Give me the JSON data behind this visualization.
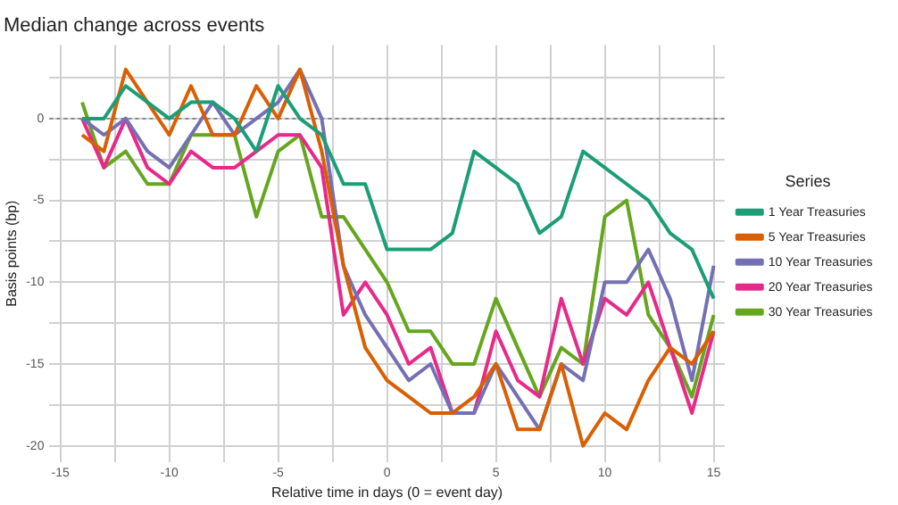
{
  "chart_data": {
    "type": "line",
    "title": "Median change across events",
    "xlabel": "Relative time in days (0 = event day)",
    "ylabel": "Basis points (bp)",
    "legend_title": "Series",
    "x": [
      -14,
      -13,
      -12,
      -11,
      -10,
      -9,
      -8,
      -7,
      -6,
      -5,
      -4,
      -3,
      -2,
      -1,
      0,
      1,
      2,
      3,
      4,
      5,
      6,
      7,
      8,
      9,
      10,
      11,
      12,
      13,
      14,
      15
    ],
    "series": [
      {
        "name": "1 Year Treasuries",
        "color": "#1b9e77",
        "values": [
          0,
          0,
          2,
          1,
          0,
          1,
          1,
          0,
          -2,
          2,
          0,
          -1,
          -4,
          -4,
          -8,
          -8,
          -8,
          -7,
          -2,
          -3,
          -4,
          -7,
          -6,
          -2,
          -3,
          -4,
          -5,
          -7,
          -8,
          -11
        ]
      },
      {
        "name": "5 Year Treasuries",
        "color": "#d95f02",
        "values": [
          -1,
          -2,
          3,
          1,
          -1,
          2,
          -1,
          -1,
          2,
          0,
          3,
          -2,
          -9,
          -14,
          -16,
          -17,
          -18,
          -18,
          -17,
          -15,
          -19,
          -19,
          -15,
          -20,
          -18,
          -19,
          -16,
          -14,
          -15,
          -13
        ]
      },
      {
        "name": "10 Year Treasuries",
        "color": "#7570b3",
        "values": [
          0,
          -1,
          0,
          -2,
          -3,
          -1,
          1,
          -1,
          0,
          1,
          3,
          0,
          -9,
          -12,
          -14,
          -16,
          -15,
          -18,
          -18,
          -15,
          -17,
          -19,
          -15,
          -16,
          -10,
          -10,
          -8,
          -11,
          -16,
          -9
        ]
      },
      {
        "name": "20 Year Treasuries",
        "color": "#e7298a",
        "values": [
          0,
          -3,
          0,
          -3,
          -4,
          -2,
          -3,
          -3,
          -2,
          -1,
          -1,
          -3,
          -12,
          -10,
          -12,
          -15,
          -14,
          -18,
          -18,
          -13,
          -16,
          -17,
          -11,
          -15,
          -11,
          -12,
          -10,
          -14,
          -18,
          -13
        ]
      },
      {
        "name": "30 Year Treasuries",
        "color": "#66a61e",
        "values": [
          1,
          -3,
          -2,
          -4,
          -4,
          -1,
          -1,
          -1,
          -6,
          -2,
          -1,
          -6,
          -6,
          -8,
          -10,
          -13,
          -13,
          -15,
          -15,
          -11,
          -14,
          -17,
          -14,
          -15,
          -6,
          -5,
          -12,
          -14,
          -17,
          -12
        ]
      }
    ],
    "xlim": [
      -15.5,
      15.5
    ],
    "xticks": [
      -15,
      {
        "value": -12.5,
        "label": null
      },
      -10,
      {
        "value": -7.5,
        "label": null
      },
      -5,
      {
        "value": -2.5,
        "label": null
      },
      0,
      {
        "value": 2.5,
        "label": null
      },
      5,
      {
        "value": 7.5,
        "label": null
      },
      10,
      {
        "value": 12.5,
        "label": null
      },
      15
    ],
    "ylim": [
      -21,
      4.5
    ],
    "yticks": [
      -20,
      {
        "value": -17.5,
        "label": null
      },
      -15,
      {
        "value": -12.5,
        "label": null
      },
      -10,
      {
        "value": -7.5,
        "label": null
      },
      -5,
      {
        "value": -2.5,
        "label": null
      },
      0,
      {
        "value": 2.5,
        "label": null
      }
    ],
    "ref_lines": [
      {
        "axis": "y",
        "value": 0,
        "line_style": "dotted",
        "color": "#888888"
      }
    ],
    "grid": true,
    "legend": "right",
    "marker": "none",
    "line_style": "solid"
  }
}
